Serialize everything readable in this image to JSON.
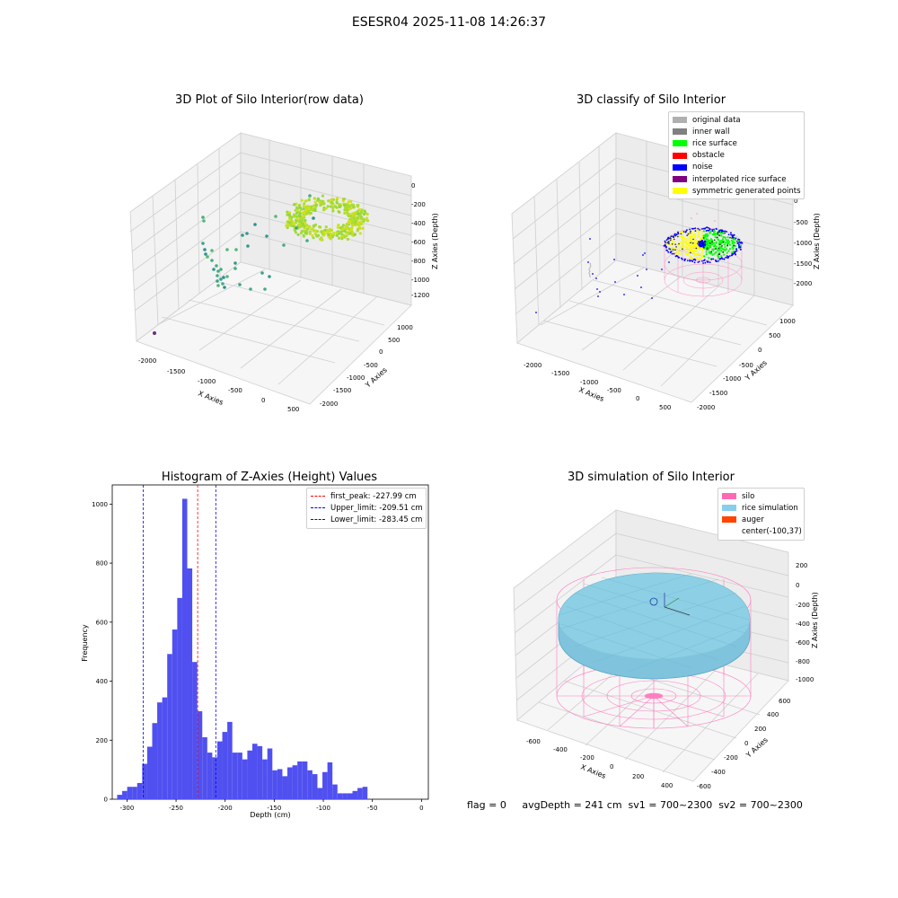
{
  "figure": {
    "suptitle": "ESESR04 2025-11-08 14:26:37",
    "footer_text": "flag = 0     avgDepth = 241 cm  sv1 = 700~2300  sv2 = 700~2300"
  },
  "panels": {
    "raw": {
      "title": "3D Plot of Silo Interior(row data)"
    },
    "classify": {
      "title": "3D classify of Silo Interior"
    },
    "histogram": {
      "title": "Histogram of Z-Axies (Height) Values"
    },
    "simulation": {
      "title": "3D simulation of Silo Interior"
    }
  },
  "chart_data": [
    {
      "type": "scatter",
      "title": "3D Plot of Silo Interior(row data)",
      "xlabel": "X Axies",
      "ylabel": "Y Axies",
      "zlabel": "Z Axies (Depth)",
      "x_ticks": [
        "-2000",
        "-1500",
        "-1000",
        "-500",
        "0",
        "500"
      ],
      "y_ticks": [
        "-2000",
        "-1500",
        "-1000",
        "-500",
        "0",
        "500",
        "1000"
      ],
      "z_ticks": [
        "0",
        "-200",
        "-400",
        "-600",
        "-800",
        "-1000",
        "-1200"
      ],
      "colormap": "viridis"
    },
    {
      "type": "scatter",
      "title": "3D classify of Silo Interior",
      "xlabel": "X Axies",
      "ylabel": "Y Axies",
      "zlabel": "Z Axies (Depth)",
      "x_ticks": [
        "-2000",
        "-1500",
        "-1000",
        "-500",
        "0",
        "500"
      ],
      "y_ticks": [
        "-2000",
        "-1500",
        "-1000",
        "-500",
        "0",
        "500",
        "1000"
      ],
      "z_ticks": [
        "0",
        "-500",
        "-1000",
        "-1500",
        "-2000"
      ],
      "legend": [
        {
          "label": "original data",
          "color": "#b0b0b0"
        },
        {
          "label": "inner wall",
          "color": "#808080"
        },
        {
          "label": "rice surface",
          "color": "#00ff00"
        },
        {
          "label": "obstacle",
          "color": "#ff0000"
        },
        {
          "label": "noise",
          "color": "#0000ff"
        },
        {
          "label": "interpolated rice surface",
          "color": "#800080"
        },
        {
          "label": "symmetric generated points",
          "color": "#ffff00"
        }
      ]
    },
    {
      "type": "bar",
      "title": "Histogram of Z-Axies (Height) Values",
      "xlabel": "Depth (cm)",
      "ylabel": "Frequency",
      "xlim": [
        -315,
        7
      ],
      "ylim": [
        0,
        1065
      ],
      "x_ticks": [
        -300,
        -250,
        -200,
        -150,
        -100,
        -50,
        0
      ],
      "y_ticks": [
        0,
        200,
        400,
        600,
        800,
        1000
      ],
      "bar_color": "#5050f0",
      "bin_start": -310,
      "bin_width": 5.1,
      "values": [
        15,
        28,
        42,
        42,
        55,
        120,
        178,
        258,
        328,
        345,
        492,
        575,
        682,
        1018,
        782,
        465,
        298,
        210,
        158,
        142,
        196,
        228,
        262,
        158,
        158,
        135,
        165,
        188,
        180,
        135,
        172,
        98,
        102,
        78,
        108,
        115,
        128,
        128,
        98,
        85,
        38,
        92,
        125,
        50,
        20,
        20,
        20,
        28,
        38,
        42
      ],
      "vlines": [
        {
          "value": -227.99,
          "color": "#ff0000",
          "label": "first_peak: -227.99 cm"
        },
        {
          "value": -209.51,
          "color": "#0000ff",
          "label": "Upper_limit: -209.51 cm"
        },
        {
          "value": -283.45,
          "color": "#0000ff",
          "label": "Lower_limit: -283.45 cm"
        }
      ],
      "legend_position": "top-right"
    },
    {
      "type": "other",
      "title": "3D simulation of Silo Interior",
      "xlabel": "X Axies",
      "ylabel": "Y Axies",
      "zlabel": "Z Axies (Depth)",
      "x_ticks": [
        "-600",
        "-400",
        "-200",
        "0",
        "200",
        "400"
      ],
      "y_ticks": [
        "-600",
        "-400",
        "-200",
        "0",
        "200",
        "400",
        "600"
      ],
      "z_ticks": [
        "200",
        "0",
        "-200",
        "-400",
        "-600",
        "-800",
        "-1000"
      ],
      "legend": [
        {
          "label": "silo",
          "color": "#ff69b4"
        },
        {
          "label": "rice simulation",
          "color": "#87ceeb"
        },
        {
          "label": "auger",
          "color": "#ff4500"
        },
        {
          "label": "center(-100,37)",
          "color": ""
        }
      ]
    }
  ]
}
